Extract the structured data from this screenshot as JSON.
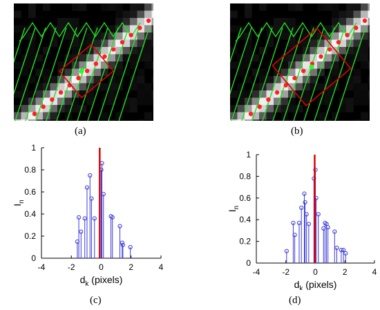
{
  "figure": {
    "panels": [
      {
        "id": "a",
        "caption": "(a)"
      },
      {
        "id": "b",
        "caption": "(b)"
      },
      {
        "id": "c",
        "caption": "(c)"
      },
      {
        "id": "d",
        "caption": "(d)"
      }
    ]
  },
  "colors": {
    "stem": "#3a3ad8",
    "center_line": "#e00000",
    "overlay_green": "#22e022",
    "overlay_red": "#e00000",
    "marker_red": "#ff2020",
    "marker_green": "#20ff20"
  },
  "chart_data": [
    {
      "panel": "c",
      "type": "stem",
      "xlabel": "d",
      "xlabel_sub": "k",
      "xlabel_suffix": " (pixels)",
      "ylabel": "I",
      "ylabel_sub": "n",
      "xlim": [
        -4,
        4
      ],
      "ylim": [
        0,
        1
      ],
      "xticks": [
        "-4",
        "-2",
        "0",
        "2",
        "4"
      ],
      "yticks": [
        "0",
        "0.2",
        "0.4",
        "0.6",
        "0.8",
        "1"
      ],
      "vertical_line_x": -0.1,
      "x": [
        -1.6,
        -1.5,
        -1.35,
        -1.1,
        -0.95,
        -0.75,
        -0.65,
        -0.45,
        0.0,
        0.05,
        0.15,
        0.65,
        0.75,
        1.25,
        1.4,
        1.45,
        1.95
      ],
      "y": [
        0.15,
        0.37,
        0.24,
        0.36,
        0.64,
        0.75,
        0.54,
        0.36,
        0.8,
        0.86,
        0.58,
        0.38,
        0.37,
        0.29,
        0.14,
        0.12,
        0.1
      ]
    },
    {
      "panel": "d",
      "type": "stem",
      "xlabel": "d",
      "xlabel_sub": "k",
      "xlabel_suffix": " (pixels)",
      "ylabel": "I",
      "ylabel_sub": "n",
      "xlim": [
        -4,
        4
      ],
      "ylim": [
        0,
        1
      ],
      "xticks": [
        "-4",
        "-2",
        "0",
        "2",
        "4"
      ],
      "yticks": [
        "0",
        "0.2",
        "0.4",
        "0.6",
        "0.8",
        "1"
      ],
      "vertical_line_x": -0.05,
      "x": [
        -1.95,
        -1.5,
        -1.4,
        -1.1,
        -0.95,
        -0.75,
        -0.7,
        -0.6,
        -0.45,
        -0.1,
        0.0,
        0.05,
        0.2,
        0.55,
        0.65,
        0.75,
        0.85,
        1.3,
        1.45,
        1.75,
        1.9,
        2.05
      ],
      "y": [
        0.11,
        0.37,
        0.26,
        0.37,
        0.51,
        0.64,
        0.56,
        0.45,
        0.36,
        0.78,
        0.86,
        0.6,
        0.45,
        0.32,
        0.37,
        0.36,
        0.33,
        0.29,
        0.14,
        0.12,
        0.12,
        0.09
      ]
    }
  ]
}
